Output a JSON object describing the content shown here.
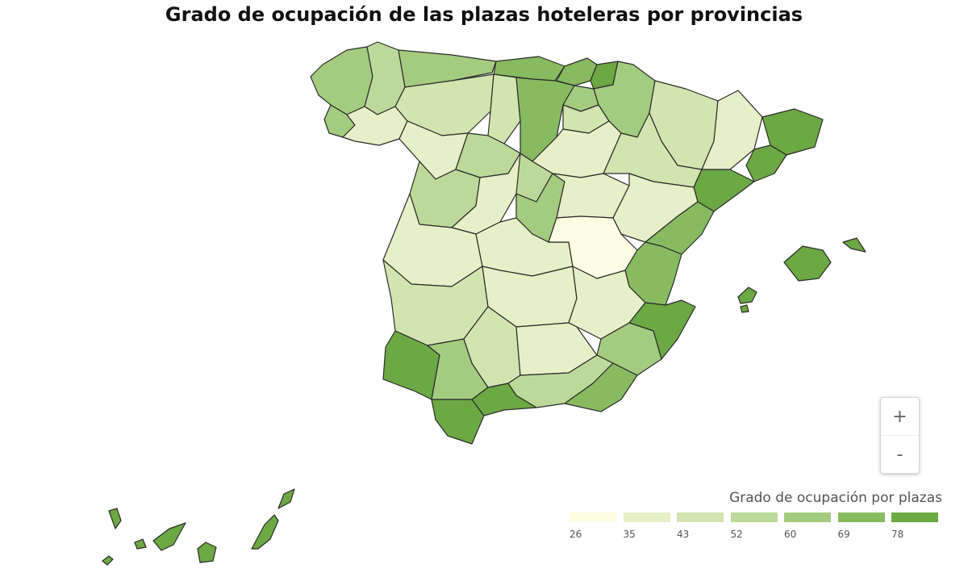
{
  "title": "Grado de ocupación de las plazas hoteleras por provincias",
  "legend": {
    "title": "Grado de ocupación por plazas",
    "classes": [
      {
        "label": "26",
        "color": "#fdfde4"
      },
      {
        "label": "35",
        "color": "#e6efc7"
      },
      {
        "label": "43",
        "color": "#d2e5b0"
      },
      {
        "label": "52",
        "color": "#bcd99a"
      },
      {
        "label": "60",
        "color": "#a4cc7f"
      },
      {
        "label": "69",
        "color": "#88bb60"
      },
      {
        "label": "78",
        "color": "#6ca843"
      }
    ]
  },
  "zoom": {
    "in_label": "+",
    "out_label": "-"
  },
  "regions": [
    {
      "id": "a-coruna",
      "class": 4
    },
    {
      "id": "lugo",
      "class": 3
    },
    {
      "id": "asturias",
      "class": 4
    },
    {
      "id": "cantabria",
      "class": 5
    },
    {
      "id": "bizkaia",
      "class": 5
    },
    {
      "id": "gipuzkoa",
      "class": 6
    },
    {
      "id": "pontevedra",
      "class": 4
    },
    {
      "id": "ourense",
      "class": 1
    },
    {
      "id": "leon",
      "class": 2
    },
    {
      "id": "palencia",
      "class": 2
    },
    {
      "id": "burgos",
      "class": 5
    },
    {
      "id": "alava",
      "class": 4
    },
    {
      "id": "navarra",
      "class": 4
    },
    {
      "id": "huesca",
      "class": 2
    },
    {
      "id": "lleida",
      "class": 1
    },
    {
      "id": "girona",
      "class": 6
    },
    {
      "id": "barcelona",
      "class": 6
    },
    {
      "id": "zamora",
      "class": 1
    },
    {
      "id": "valladolid",
      "class": 3
    },
    {
      "id": "la-rioja",
      "class": 2
    },
    {
      "id": "soria",
      "class": 1
    },
    {
      "id": "zaragoza",
      "class": 2
    },
    {
      "id": "tarragona",
      "class": 6
    },
    {
      "id": "salamanca",
      "class": 3
    },
    {
      "id": "avila",
      "class": 1
    },
    {
      "id": "segovia",
      "class": 3
    },
    {
      "id": "madrid",
      "class": 4
    },
    {
      "id": "guadalajara",
      "class": 1
    },
    {
      "id": "teruel",
      "class": 1
    },
    {
      "id": "castellon",
      "class": 5
    },
    {
      "id": "caceres",
      "class": 1
    },
    {
      "id": "toledo",
      "class": 1
    },
    {
      "id": "cuenca",
      "class": 0
    },
    {
      "id": "valencia",
      "class": 5
    },
    {
      "id": "badajoz",
      "class": 2
    },
    {
      "id": "ciudad-real",
      "class": 1
    },
    {
      "id": "albacete",
      "class": 1
    },
    {
      "id": "alicante",
      "class": 6
    },
    {
      "id": "huelva",
      "class": 6
    },
    {
      "id": "sevilla",
      "class": 4
    },
    {
      "id": "cordoba",
      "class": 2
    },
    {
      "id": "jaen",
      "class": 1
    },
    {
      "id": "murcia",
      "class": 4
    },
    {
      "id": "granada",
      "class": 3
    },
    {
      "id": "almeria",
      "class": 5
    },
    {
      "id": "cadiz",
      "class": 6
    },
    {
      "id": "malaga",
      "class": 6
    },
    {
      "id": "mallorca",
      "class": 6
    },
    {
      "id": "menorca",
      "class": 6
    },
    {
      "id": "ibiza",
      "class": 6
    },
    {
      "id": "formentera",
      "class": 6
    },
    {
      "id": "la-palma",
      "class": 6
    },
    {
      "id": "el-hierro",
      "class": 6
    },
    {
      "id": "la-gomera",
      "class": 6
    },
    {
      "id": "tenerife",
      "class": 6
    },
    {
      "id": "gran-canaria",
      "class": 6
    },
    {
      "id": "fuerteventura",
      "class": 6
    },
    {
      "id": "lanzarote",
      "class": 6
    }
  ]
}
